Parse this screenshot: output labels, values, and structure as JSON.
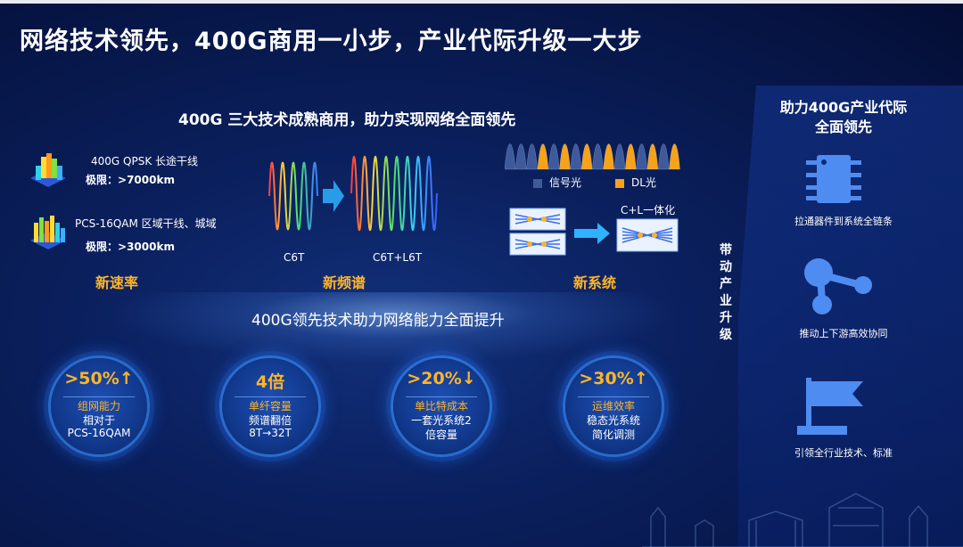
{
  "title": "网络技术领先，400G商用一小步，产业代际升级一大步",
  "subtitle": "400G 三大技术成熟商用，助力实现网络全面领先",
  "rate": {
    "item1_name": "400G QPSK 长途干线",
    "item1_limit_label": "极限：",
    "item1_limit_value": ">7000km",
    "item2_name": "PCS-16QAM 区域干线、城域",
    "item2_limit_label": "极限：",
    "item2_limit_value": ">3000km",
    "label": "新速率"
  },
  "spectrum": {
    "left_caption": "C6T",
    "right_caption": "C6T+L6T",
    "label": "新频谱"
  },
  "system": {
    "legend_signal": "信号光",
    "legend_dl": "DL光",
    "integration": "C+L一体化",
    "label": "新系统",
    "colors": {
      "signal": "#3e5a9a",
      "dl": "#f7a21b"
    }
  },
  "mid_text": "400G领先技术助力网络能力全面提升",
  "stats": [
    {
      "big": ">50%↑",
      "l1": "组网能力",
      "l2": "相对于",
      "l3": "PCS-16QAM"
    },
    {
      "big": "4倍",
      "l1": "单纤容量",
      "l2": "频谱翻倍",
      "l3": "8T→32T"
    },
    {
      "big": ">20%↓",
      "l1": "单比特成本",
      "l2": "一套光系统2",
      "l3": "倍容量"
    },
    {
      "big": ">30%↑",
      "l1": "运维效率",
      "l2": "稳态光系统",
      "l3": "简化调测"
    }
  ],
  "vertical_text": [
    "带",
    "动",
    "产",
    "业",
    "升",
    "级"
  ],
  "right": {
    "title_line1": "助力400G产业代际",
    "title_line2": "全面领先",
    "cap1": "拉通器件到系统全链条",
    "cap2": "推动上下游高效协同",
    "cap3": "引领全行业技术、标准"
  },
  "accent": "#ffb526"
}
